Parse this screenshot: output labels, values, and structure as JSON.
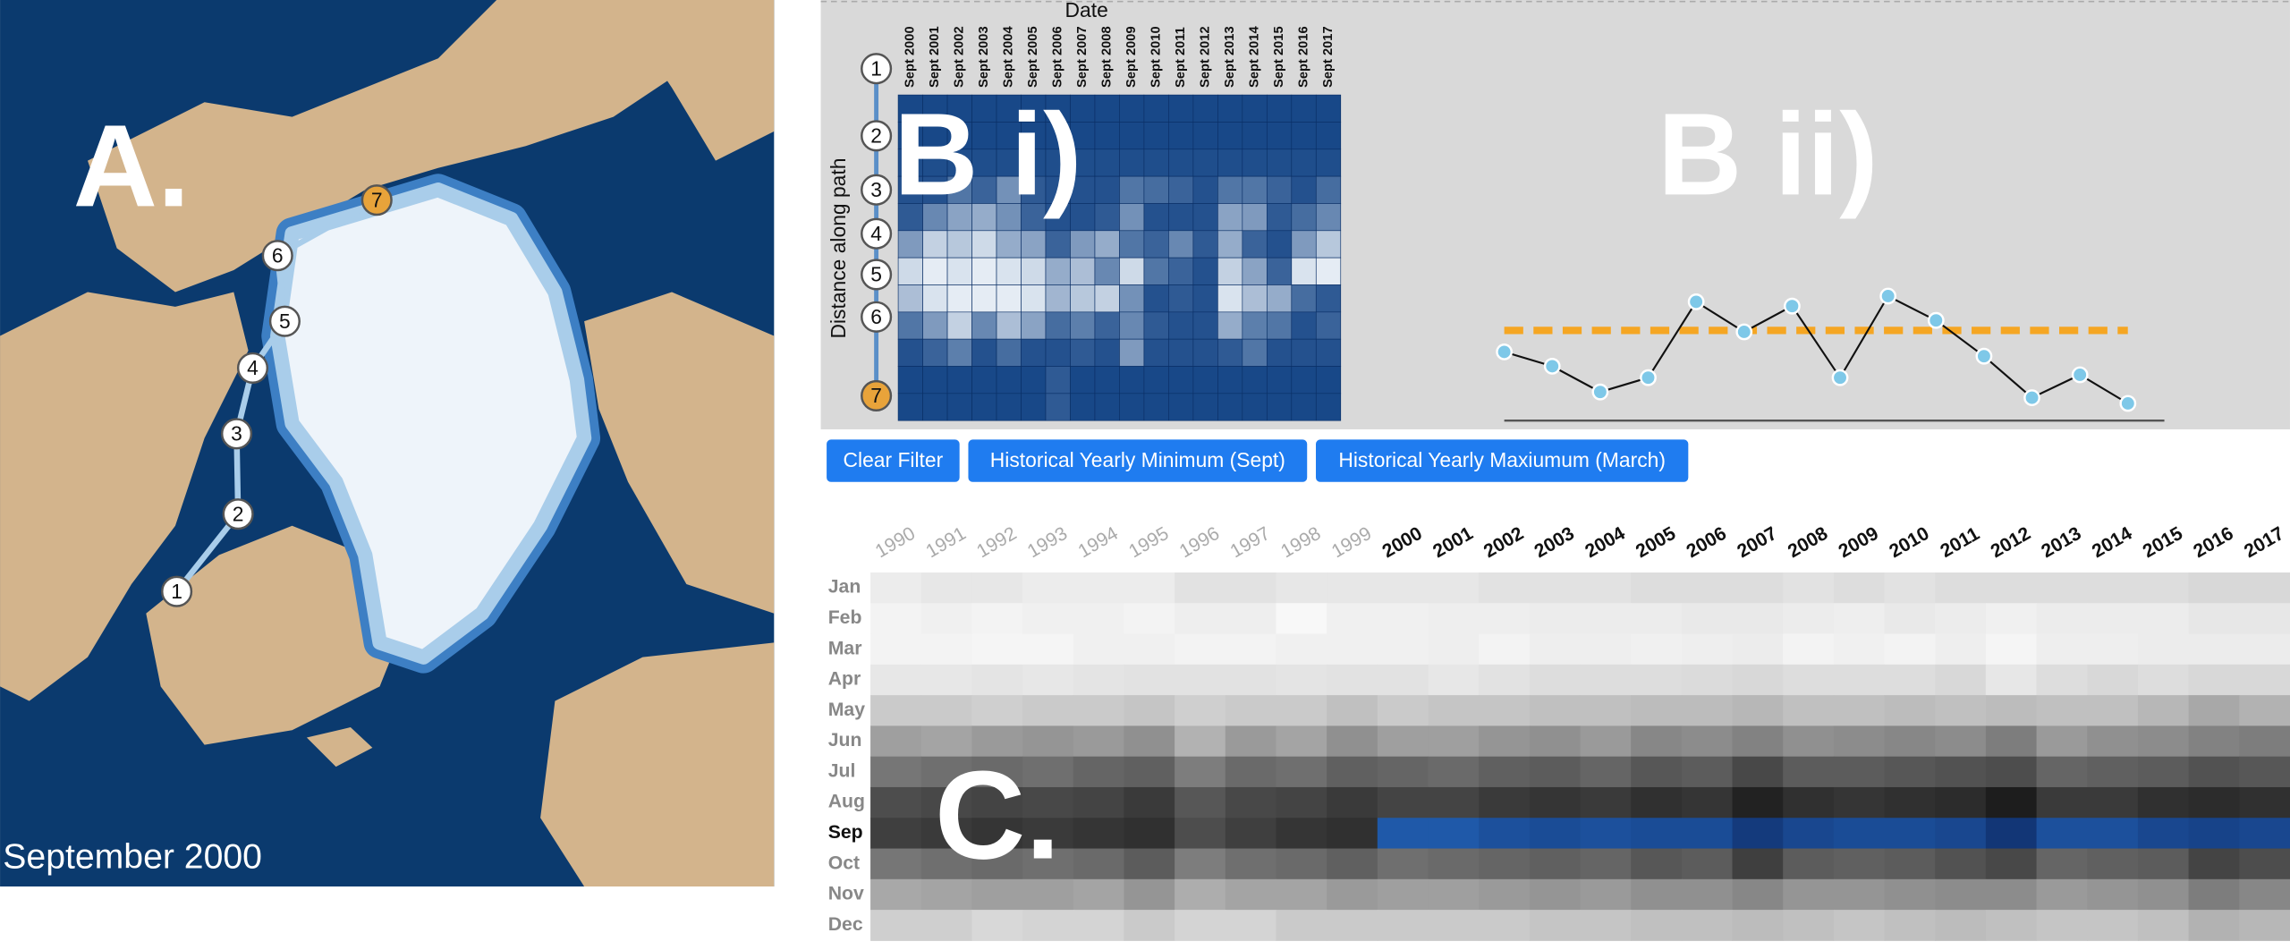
{
  "map": {
    "label": "A.",
    "caption": "September 2000",
    "path_nodes": [
      "1",
      "2",
      "3",
      "4",
      "5",
      "6",
      "7"
    ]
  },
  "panel_b_i": {
    "label": "B i)",
    "x_title": "Date",
    "y_title": "Distance along path",
    "columns": [
      "Sept 2000",
      "Sept 2001",
      "Sept 2002",
      "Sept 2003",
      "Sept 2004",
      "Sept 2005",
      "Sept 2006",
      "Sept 2007",
      "Sept 2008",
      "Sept 2009",
      "Sept 2010",
      "Sept 2011",
      "Sept 2012",
      "Sept 2013",
      "Sept 2014",
      "Sept 2015",
      "Sept 2016",
      "Sept 2017"
    ],
    "values": [
      [
        5,
        5,
        5,
        5,
        5,
        5,
        5,
        5,
        5,
        5,
        5,
        5,
        5,
        5,
        5,
        5,
        5,
        5
      ],
      [
        5,
        5,
        5,
        5,
        5,
        5,
        5,
        5,
        5,
        5,
        5,
        5,
        5,
        5,
        5,
        5,
        5,
        5
      ],
      [
        8,
        8,
        8,
        8,
        8,
        8,
        8,
        8,
        8,
        8,
        8,
        8,
        8,
        8,
        8,
        8,
        8,
        8
      ],
      [
        10,
        10,
        30,
        20,
        45,
        15,
        10,
        10,
        10,
        30,
        25,
        20,
        10,
        30,
        30,
        20,
        10,
        25
      ],
      [
        15,
        40,
        55,
        60,
        45,
        20,
        10,
        10,
        15,
        45,
        10,
        10,
        10,
        55,
        50,
        15,
        25,
        40
      ],
      [
        50,
        80,
        75,
        85,
        60,
        55,
        20,
        50,
        60,
        30,
        20,
        40,
        15,
        60,
        20,
        10,
        50,
        75
      ],
      [
        85,
        95,
        90,
        95,
        90,
        85,
        60,
        70,
        40,
        85,
        30,
        20,
        10,
        80,
        55,
        20,
        90,
        95
      ],
      [
        70,
        90,
        95,
        95,
        95,
        90,
        65,
        75,
        80,
        45,
        10,
        15,
        10,
        90,
        70,
        60,
        25,
        15
      ],
      [
        30,
        50,
        80,
        40,
        70,
        55,
        25,
        35,
        20,
        40,
        15,
        10,
        10,
        60,
        35,
        30,
        10,
        20
      ],
      [
        10,
        20,
        35,
        10,
        25,
        10,
        10,
        15,
        10,
        50,
        10,
        10,
        10,
        15,
        30,
        10,
        10,
        10
      ],
      [
        5,
        5,
        5,
        5,
        5,
        5,
        15,
        5,
        5,
        5,
        5,
        5,
        5,
        5,
        5,
        5,
        5,
        5
      ],
      [
        5,
        5,
        5,
        5,
        5,
        5,
        15,
        5,
        5,
        5,
        5,
        5,
        5,
        5,
        5,
        5,
        5,
        5
      ]
    ]
  },
  "panel_b_ii": {
    "label": "B ii)",
    "values": [
      48,
      38,
      20,
      30,
      83,
      62,
      80,
      30,
      87,
      70,
      45,
      16,
      32,
      12
    ],
    "ylim": [
      0,
      100
    ],
    "reference_line": 63,
    "line_color": "#111111",
    "marker_color": "#7ec8e8",
    "reference_color": "#f5a623"
  },
  "buttons": [
    "Clear Filter",
    "Historical Yearly Minimum (Sept)",
    "Historical Yearly Maxiumum (March)"
  ],
  "panel_c": {
    "label": "C.",
    "years": [
      1990,
      1991,
      1992,
      1993,
      1994,
      1995,
      1996,
      1997,
      1998,
      1999,
      2000,
      2001,
      2002,
      2003,
      2004,
      2005,
      2006,
      2007,
      2008,
      2009,
      2010,
      2011,
      2012,
      2013,
      2014,
      2015,
      2016,
      2017
    ],
    "months": [
      "Jan",
      "Feb",
      "Mar",
      "Apr",
      "May",
      "Jun",
      "Jul",
      "Aug",
      "Sep",
      "Oct",
      "Nov",
      "Dec"
    ],
    "selected_month_index": 8,
    "selected_year_start_index": 10,
    "values": [
      [
        6,
        8,
        8,
        6,
        6,
        6,
        10,
        10,
        8,
        8,
        8,
        8,
        10,
        10,
        10,
        12,
        12,
        12,
        10,
        12,
        10,
        12,
        12,
        12,
        12,
        12,
        14,
        14
      ],
      [
        3,
        4,
        3,
        4,
        4,
        3,
        5,
        5,
        1,
        4,
        4,
        5,
        5,
        6,
        6,
        6,
        7,
        7,
        6,
        5,
        7,
        6,
        4,
        6,
        6,
        6,
        8,
        8
      ],
      [
        3,
        3,
        2,
        2,
        4,
        4,
        3,
        3,
        4,
        4,
        4,
        5,
        3,
        5,
        5,
        4,
        5,
        6,
        3,
        4,
        3,
        5,
        2,
        5,
        5,
        6,
        6,
        6
      ],
      [
        8,
        8,
        9,
        8,
        9,
        10,
        10,
        10,
        9,
        10,
        10,
        8,
        10,
        12,
        12,
        12,
        13,
        14,
        12,
        12,
        12,
        14,
        8,
        12,
        14,
        12,
        14,
        14
      ],
      [
        20,
        20,
        18,
        20,
        20,
        22,
        18,
        20,
        20,
        24,
        20,
        22,
        22,
        24,
        24,
        26,
        26,
        28,
        24,
        24,
        26,
        24,
        26,
        24,
        24,
        28,
        34,
        30
      ],
      [
        38,
        36,
        40,
        42,
        40,
        44,
        30,
        40,
        36,
        44,
        38,
        38,
        42,
        44,
        40,
        48,
        46,
        50,
        44,
        46,
        48,
        46,
        52,
        40,
        44,
        46,
        50,
        52
      ],
      [
        55,
        58,
        60,
        58,
        62,
        64,
        52,
        60,
        58,
        64,
        62,
        60,
        64,
        66,
        62,
        68,
        66,
        74,
        66,
        66,
        68,
        70,
        72,
        62,
        64,
        66,
        70,
        68
      ],
      [
        72,
        74,
        76,
        74,
        76,
        80,
        68,
        74,
        76,
        80,
        76,
        76,
        80,
        82,
        80,
        84,
        82,
        90,
        84,
        82,
        84,
        86,
        92,
        80,
        80,
        84,
        86,
        84
      ],
      [
        78,
        80,
        82,
        80,
        82,
        84,
        72,
        78,
        82,
        84,
        80,
        80,
        84,
        86,
        84,
        86,
        86,
        94,
        88,
        86,
        86,
        88,
        96,
        84,
        84,
        88,
        90,
        88
      ],
      [
        55,
        58,
        60,
        58,
        60,
        66,
        52,
        58,
        60,
        64,
        58,
        60,
        62,
        64,
        62,
        68,
        66,
        78,
        66,
        64,
        66,
        70,
        74,
        62,
        64,
        66,
        76,
        72
      ],
      [
        34,
        36,
        38,
        38,
        36,
        42,
        32,
        36,
        36,
        40,
        38,
        38,
        40,
        42,
        40,
        44,
        44,
        48,
        42,
        42,
        44,
        46,
        46,
        40,
        42,
        44,
        52,
        48
      ],
      [
        18,
        18,
        14,
        16,
        16,
        20,
        16,
        16,
        20,
        20,
        20,
        20,
        20,
        22,
        22,
        24,
        24,
        26,
        24,
        22,
        24,
        26,
        24,
        22,
        22,
        24,
        30,
        28
      ]
    ]
  }
}
